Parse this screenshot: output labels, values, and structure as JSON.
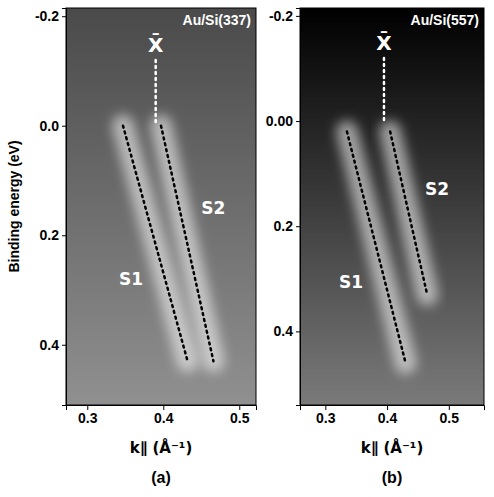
{
  "chart_data": [
    {
      "type": "line",
      "title": "Au/Si(337)",
      "panel_label": "(a)",
      "ylabel": "Binding energy (eV)",
      "xlabel": "k∥ (Å⁻¹)",
      "xlim": [
        0.272,
        0.522
      ],
      "ylim": [
        -0.215,
        0.51
      ],
      "xticks": [
        0.3,
        0.4,
        0.5
      ],
      "yticks": [
        -0.2,
        {
          "value": 0,
          "label": "0.0"
        },
        0.2,
        0.4
      ],
      "series": [
        {
          "name": "X̄",
          "x": [
            0.39,
            0.39
          ],
          "values": [
            -0.12,
            0.0
          ],
          "color": "#ffffff",
          "line_style": "dotted"
        },
        {
          "name": "S1",
          "x": [
            0.347,
            0.432
          ],
          "values": [
            0.0,
            0.43
          ],
          "color": "#000000",
          "line_style": "dotted"
        },
        {
          "name": "S2",
          "x": [
            0.397,
            0.466
          ],
          "values": [
            0.0,
            0.43
          ],
          "color": "#000000",
          "line_style": "dotted"
        }
      ]
    },
    {
      "type": "line",
      "title": "Au/Si(557)",
      "panel_label": "(b)",
      "xlabel": "k∥ (Å⁻¹)",
      "xlim": [
        0.259,
        0.557
      ],
      "ylim": [
        -0.215,
        0.54
      ],
      "xticks": [
        0.3,
        0.4,
        0.5
      ],
      "yticks": [
        -0.2,
        {
          "value": 0,
          "label": "0.00"
        },
        0.2,
        0.4
      ],
      "series": [
        {
          "name": "X̄",
          "x": [
            0.395,
            0.395
          ],
          "values": [
            -0.12,
            0.0
          ],
          "color": "#ffffff",
          "line_style": "dotted"
        },
        {
          "name": "S1",
          "x": [
            0.335,
            0.43
          ],
          "values": [
            0.02,
            0.46
          ],
          "color": "#000000",
          "line_style": "dotted"
        },
        {
          "name": "S2",
          "x": [
            0.405,
            0.465
          ],
          "values": [
            0.02,
            0.33
          ],
          "color": "#000000",
          "line_style": "dotted"
        }
      ]
    }
  ]
}
